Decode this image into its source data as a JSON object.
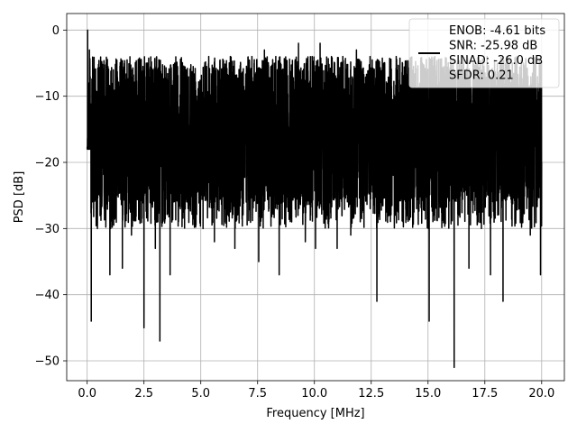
{
  "chart_data": {
    "type": "line",
    "title": "",
    "xlabel": "Frequency [MHz]",
    "ylabel": "PSD [dB]",
    "xlim": [
      -0.9,
      21.0
    ],
    "ylim": [
      -53.0,
      2.5
    ],
    "xticks": [
      0.0,
      2.5,
      5.0,
      7.5,
      10.0,
      12.5,
      15.0,
      17.5,
      20.0
    ],
    "xtick_labels": [
      "0.0",
      "2.5",
      "5.0",
      "7.5",
      "10.0",
      "12.5",
      "15.0",
      "17.5",
      "20.0"
    ],
    "yticks": [
      0,
      -10,
      -20,
      -30,
      -40,
      -50
    ],
    "ytick_labels": [
      "0",
      "−10",
      "−20",
      "−30",
      "−40",
      "−50"
    ],
    "grid": true,
    "legend_position": "top-right",
    "legend_lines": [
      "ENOB: -4.61 bits",
      "SNR: -25.98 dB",
      "SINAD: -26.0 dB",
      "SFDR: 0.21"
    ],
    "series": [
      {
        "color": "#000000",
        "x_range": [
          0.0,
          20.0
        ],
        "description": "Noise-like PSD from 0 to 20 MHz; 0 dB peak at DC, typical band -3 to -30 dB with deep nulls",
        "points": [
          [
            0.0,
            -18
          ],
          [
            0.02,
            0.0
          ],
          [
            0.05,
            -8
          ],
          [
            0.1,
            -3
          ],
          [
            0.15,
            -14
          ],
          [
            0.18,
            -44
          ],
          [
            0.25,
            -6
          ],
          [
            0.35,
            -20
          ],
          [
            0.45,
            -30
          ],
          [
            0.6,
            -8
          ],
          [
            0.75,
            -27
          ],
          [
            0.9,
            -10
          ],
          [
            1.0,
            -37
          ],
          [
            1.15,
            -6
          ],
          [
            1.3,
            -25
          ],
          [
            1.5,
            -9
          ],
          [
            1.55,
            -36
          ],
          [
            1.75,
            -7
          ],
          [
            1.95,
            -31
          ],
          [
            2.15,
            -6
          ],
          [
            2.35,
            -22
          ],
          [
            2.5,
            -45
          ],
          [
            2.6,
            -5
          ],
          [
            2.85,
            -25
          ],
          [
            3.0,
            -33
          ],
          [
            3.1,
            -6
          ],
          [
            3.2,
            -47
          ],
          [
            3.35,
            -8
          ],
          [
            3.65,
            -37
          ],
          [
            3.85,
            -5
          ],
          [
            4.1,
            -27
          ],
          [
            4.35,
            -6
          ],
          [
            4.6,
            -24
          ],
          [
            4.85,
            -10
          ],
          [
            5.1,
            -30
          ],
          [
            5.35,
            -4
          ],
          [
            5.6,
            -32
          ],
          [
            5.85,
            -7
          ],
          [
            6.05,
            -27
          ],
          [
            6.3,
            -4
          ],
          [
            6.5,
            -33
          ],
          [
            6.75,
            -5
          ],
          [
            7.0,
            -26
          ],
          [
            7.25,
            -4
          ],
          [
            7.55,
            -35
          ],
          [
            7.8,
            -3
          ],
          [
            8.0,
            -27
          ],
          [
            8.3,
            -4
          ],
          [
            8.45,
            -37
          ],
          [
            8.7,
            -6
          ],
          [
            9.0,
            -29
          ],
          [
            9.3,
            -2
          ],
          [
            9.6,
            -32
          ],
          [
            9.9,
            -4
          ],
          [
            10.05,
            -33
          ],
          [
            10.25,
            -2
          ],
          [
            10.45,
            -27
          ],
          [
            10.75,
            -4
          ],
          [
            11.0,
            -33
          ],
          [
            11.25,
            -4
          ],
          [
            11.6,
            -31
          ],
          [
            11.85,
            -3
          ],
          [
            12.15,
            -26
          ],
          [
            12.45,
            -4
          ],
          [
            12.75,
            -41
          ],
          [
            13.05,
            -5
          ],
          [
            13.3,
            -28
          ],
          [
            13.6,
            -4
          ],
          [
            13.9,
            -29
          ],
          [
            14.2,
            -5
          ],
          [
            14.5,
            -27
          ],
          [
            14.75,
            -5
          ],
          [
            15.05,
            -44
          ],
          [
            15.3,
            -4
          ],
          [
            15.65,
            -27
          ],
          [
            15.95,
            -6
          ],
          [
            16.15,
            -51
          ],
          [
            16.45,
            -5
          ],
          [
            16.8,
            -36
          ],
          [
            17.05,
            -6
          ],
          [
            17.35,
            -30
          ],
          [
            17.6,
            -4
          ],
          [
            17.75,
            -37
          ],
          [
            18.05,
            -5
          ],
          [
            18.3,
            -41
          ],
          [
            18.6,
            -7
          ],
          [
            18.9,
            -23
          ],
          [
            19.2,
            -6
          ],
          [
            19.5,
            -31
          ],
          [
            19.7,
            -5
          ],
          [
            19.95,
            -37
          ],
          [
            20.0,
            -20
          ]
        ]
      }
    ]
  }
}
